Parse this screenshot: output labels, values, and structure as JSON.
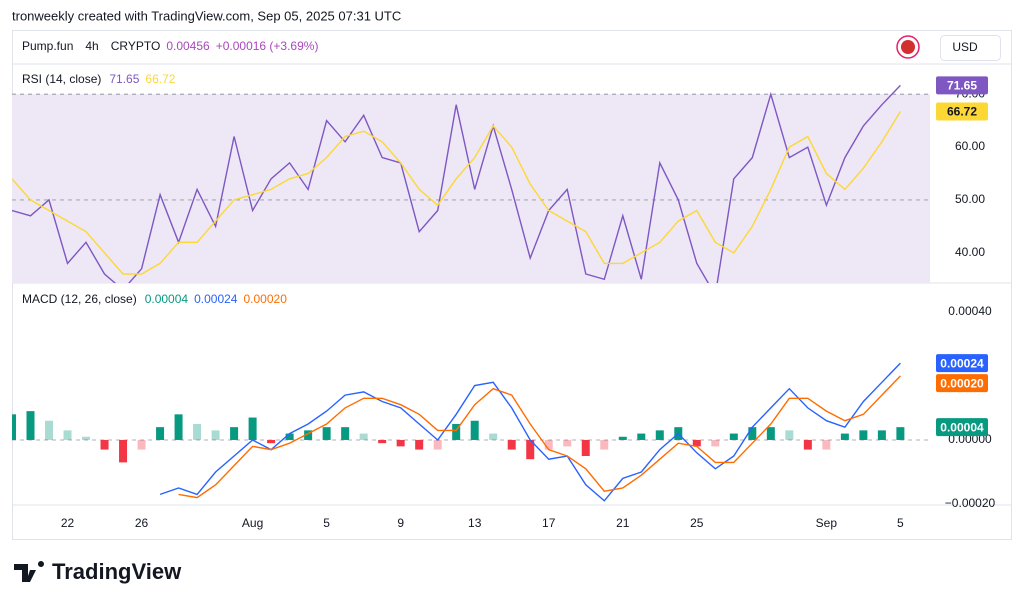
{
  "header": "tronweekly created with TradingView.com, Sep 05, 2025 07:31 UTC",
  "legend": {
    "symbol": "Pump.fun",
    "interval": "4h",
    "exchange": "CRYPTO",
    "price": "0.00456",
    "change": "+0.00016 (+3.69%)"
  },
  "currency": "USD",
  "logo": "TradingView",
  "chart_data": [
    {
      "type": "line",
      "title": "RSI (14, close)",
      "ylim": [
        34.3,
        75.7
      ],
      "yticks": [
        {
          "value": 40,
          "label": "40.00"
        },
        {
          "value": 50,
          "label": "50.00"
        },
        {
          "value": 60,
          "label": "60.00"
        },
        {
          "value": 70,
          "label": "70.00"
        }
      ],
      "band": [
        30,
        70
      ],
      "band_color": "#ede7f6",
      "series": [
        {
          "color": "#7e57c2",
          "values": [
            48,
            47,
            50,
            38,
            42,
            36,
            33,
            37,
            51,
            42,
            52,
            45,
            62,
            48,
            54,
            57,
            52,
            65,
            61,
            66,
            58,
            57,
            44,
            48,
            68,
            52,
            64,
            52,
            39,
            48,
            52,
            36,
            35,
            47,
            35,
            57,
            50,
            38,
            32,
            54,
            58,
            70,
            58,
            60,
            49,
            58,
            64,
            68,
            71.65,
            null
          ]
        },
        {
          "color": "#fdd835",
          "values": [
            54,
            50,
            48,
            46,
            44,
            40,
            36,
            36,
            38,
            42,
            42,
            46,
            50,
            51,
            52,
            54,
            55,
            58,
            62,
            63,
            61,
            57,
            52,
            49,
            54,
            58,
            64,
            60,
            53,
            48,
            46,
            44,
            38,
            38,
            40,
            42,
            46,
            48,
            42,
            40,
            45,
            52,
            60,
            62,
            55,
            52,
            56,
            61,
            66.72,
            null
          ]
        }
      ]
    },
    {
      "type": "macd",
      "title": "MACD (12, 26, close)",
      "ylim": [
        -0.000203,
        0.00049
      ],
      "yticks": [
        {
          "value": 0.0004,
          "label": "0.00040"
        },
        {
          "value": 0,
          "label": "0.00000"
        },
        {
          "value": -0.0002,
          "label": "−0.00020"
        }
      ],
      "categories": [
        null,
        null,
        null,
        "22",
        null,
        null,
        null,
        "26",
        null,
        null,
        null,
        null,
        null,
        "Aug",
        null,
        null,
        null,
        "5",
        null,
        null,
        null,
        "9",
        null,
        null,
        null,
        "13",
        null,
        null,
        null,
        "17",
        null,
        null,
        null,
        "21",
        null,
        null,
        null,
        "25",
        null,
        null,
        null,
        null,
        null,
        null,
        "Sep",
        null,
        null,
        null,
        "5",
        null
      ],
      "histogram": {
        "color": "#089981",
        "color_negative": "#f23645",
        "values": [
          8e-05,
          9e-05,
          6e-05,
          3e-05,
          1e-05,
          -3e-05,
          -7e-05,
          -3e-05,
          4e-05,
          8e-05,
          5e-05,
          3e-05,
          4e-05,
          7e-05,
          -1e-05,
          2e-05,
          3e-05,
          4e-05,
          4e-05,
          2e-05,
          -1e-05,
          -2e-05,
          -3e-05,
          -3e-05,
          5e-05,
          6e-05,
          2e-05,
          -3e-05,
          -6e-05,
          -3e-05,
          -2e-05,
          -5e-05,
          -3e-05,
          1e-05,
          2e-05,
          3e-05,
          4e-05,
          -2e-05,
          -2e-05,
          2e-05,
          4e-05,
          4e-05,
          3e-05,
          -3e-05,
          -3e-05,
          2e-05,
          3e-05,
          3e-05,
          4e-05,
          null
        ]
      },
      "series": [
        {
          "color": "#2962ff",
          "values": [
            null,
            null,
            null,
            null,
            null,
            null,
            null,
            null,
            -0.00017,
            -0.00015,
            -0.00017,
            -0.0001,
            -5e-05,
            0,
            -3e-05,
            2e-05,
            5e-05,
            9e-05,
            0.00014,
            0.00015,
            0.00012,
            0.0001,
            5e-05,
            0,
            8e-05,
            0.00017,
            0.00018,
            0.0001,
            0,
            -6e-05,
            -5e-05,
            -0.00014,
            -0.00019,
            -0.00012,
            -0.0001,
            -3e-05,
            2e-05,
            -4e-05,
            -9e-05,
            -5e-05,
            4e-05,
            0.0001,
            0.00016,
            0.0001,
            6e-05,
            4e-05,
            0.00012,
            0.00018,
            0.00024,
            null
          ]
        },
        {
          "color": "#ff6d00",
          "values": [
            null,
            null,
            null,
            null,
            null,
            null,
            null,
            null,
            null,
            -0.00017,
            -0.00018,
            -0.00014,
            -8e-05,
            -2e-05,
            -3e-05,
            -1e-05,
            2e-05,
            5e-05,
            0.0001,
            0.00013,
            0.00013,
            0.00011,
            8e-05,
            3e-05,
            3e-05,
            0.00011,
            0.00016,
            0.00014,
            5e-05,
            -3e-05,
            -5e-05,
            -9e-05,
            -0.00016,
            -0.00015,
            -0.00011,
            -6e-05,
            -1e-05,
            -2e-05,
            -7e-05,
            -7e-05,
            -1e-05,
            5e-05,
            0.00013,
            0.00013,
            9e-05,
            6e-05,
            8e-05,
            0.00014,
            0.0002,
            null
          ],
          "value_labels": [
            null,
            null,
            null,
            null,
            null,
            null,
            null,
            null,
            null,
            null,
            null,
            null,
            null,
            null,
            null,
            null,
            null,
            null,
            null,
            null,
            null,
            null,
            null,
            null,
            null,
            null,
            null,
            null,
            null,
            null,
            null,
            null,
            null,
            null,
            null,
            null,
            null,
            null,
            null,
            null,
            null,
            null,
            null,
            null,
            null,
            null,
            null,
            null,
            "0.00020",
            null
          ]
        }
      ]
    }
  ]
}
